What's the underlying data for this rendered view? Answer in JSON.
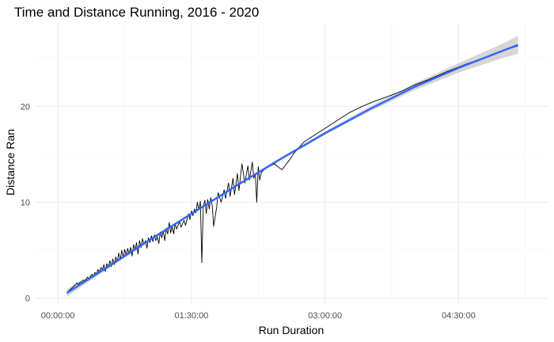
{
  "chart_data": {
    "type": "line",
    "title": "Time and Distance Running, 2016 - 2020",
    "xlabel": "Run Duration",
    "ylabel": "Distance Ran",
    "x_unit": "minutes",
    "xlim": [
      -15,
      330
    ],
    "ylim": [
      -0.6,
      28.6
    ],
    "x_ticks": [
      {
        "value": 0,
        "label": "00:00:00"
      },
      {
        "value": 90,
        "label": "01:30:00"
      },
      {
        "value": 180,
        "label": "03:00:00"
      },
      {
        "value": 270,
        "label": "04:30:00"
      }
    ],
    "y_ticks": [
      {
        "value": 0,
        "label": "0"
      },
      {
        "value": 10,
        "label": "10"
      },
      {
        "value": 20,
        "label": "20"
      }
    ],
    "grid": true,
    "legend": "none",
    "series": [
      {
        "kind": "observed",
        "color": "#000000",
        "points": [
          [
            6,
            0.6
          ],
          [
            9,
            1.0
          ],
          [
            11,
            1.3
          ],
          [
            13,
            1.6
          ],
          [
            14,
            1.4
          ],
          [
            15,
            1.7
          ],
          [
            16,
            1.6
          ],
          [
            17,
            1.9
          ],
          [
            18,
            1.8
          ],
          [
            19,
            2.0
          ],
          [
            20,
            2.2
          ],
          [
            21,
            2.0
          ],
          [
            22,
            2.3
          ],
          [
            23,
            2.5
          ],
          [
            24,
            2.2
          ],
          [
            25,
            2.7
          ],
          [
            26,
            2.5
          ],
          [
            27,
            3.0
          ],
          [
            28,
            2.7
          ],
          [
            29,
            3.2
          ],
          [
            30,
            3.0
          ],
          [
            31,
            3.5
          ],
          [
            32,
            2.8
          ],
          [
            33,
            3.6
          ],
          [
            34,
            3.2
          ],
          [
            35,
            3.9
          ],
          [
            36,
            3.3
          ],
          [
            37,
            4.1
          ],
          [
            38,
            3.5
          ],
          [
            39,
            4.3
          ],
          [
            40,
            3.8
          ],
          [
            41,
            4.7
          ],
          [
            42,
            4.0
          ],
          [
            43,
            5.0
          ],
          [
            44,
            4.2
          ],
          [
            45,
            5.1
          ],
          [
            46,
            4.5
          ],
          [
            47,
            5.2
          ],
          [
            48,
            4.6
          ],
          [
            49,
            5.3
          ],
          [
            50,
            4.4
          ],
          [
            51,
            5.6
          ],
          [
            52,
            5.0
          ],
          [
            53,
            5.8
          ],
          [
            54,
            4.6
          ],
          [
            55,
            6.0
          ],
          [
            56,
            5.3
          ],
          [
            57,
            6.2
          ],
          [
            58,
            5.6
          ],
          [
            59,
            6.0
          ],
          [
            60,
            5.2
          ],
          [
            61,
            6.3
          ],
          [
            62,
            5.8
          ],
          [
            63,
            6.5
          ],
          [
            64,
            5.9
          ],
          [
            65,
            6.6
          ],
          [
            66,
            6.0
          ],
          [
            67,
            6.4
          ],
          [
            68,
            5.7
          ],
          [
            69,
            6.9
          ],
          [
            70,
            6.3
          ],
          [
            71,
            7.0
          ],
          [
            72,
            6.0
          ],
          [
            73,
            7.3
          ],
          [
            74,
            6.7
          ],
          [
            75,
            7.9
          ],
          [
            76,
            6.8
          ],
          [
            77,
            7.5
          ],
          [
            78,
            6.7
          ],
          [
            79,
            7.8
          ],
          [
            80,
            7.2
          ],
          [
            82,
            8.0
          ],
          [
            83,
            7.4
          ],
          [
            85,
            8.1
          ],
          [
            86,
            7.6
          ],
          [
            88,
            8.8
          ],
          [
            89,
            8.2
          ],
          [
            90,
            9.1
          ],
          [
            91,
            8.6
          ],
          [
            92,
            9.3
          ],
          [
            93,
            8.9
          ],
          [
            94,
            10.0
          ],
          [
            95,
            9.2
          ],
          [
            96,
            10.1
          ],
          [
            97,
            3.7
          ],
          [
            98,
            9.6
          ],
          [
            99,
            10.2
          ],
          [
            100,
            8.8
          ],
          [
            101,
            10.3
          ],
          [
            102,
            9.3
          ],
          [
            103,
            10.5
          ],
          [
            104,
            9.6
          ],
          [
            105,
            7.5
          ],
          [
            107,
            9.5
          ],
          [
            108,
            11.0
          ],
          [
            110,
            10.0
          ],
          [
            112,
            11.3
          ],
          [
            113,
            10.4
          ],
          [
            115,
            12.0
          ],
          [
            116,
            10.6
          ],
          [
            118,
            12.5
          ],
          [
            119,
            10.8
          ],
          [
            121,
            13.0
          ],
          [
            122,
            11.2
          ],
          [
            124,
            14.0
          ],
          [
            126,
            12.0
          ],
          [
            128,
            13.8
          ],
          [
            129,
            12.3
          ],
          [
            131,
            14.2
          ],
          [
            132,
            12.5
          ],
          [
            133,
            13.0
          ],
          [
            134,
            10.0
          ],
          [
            135,
            13.7
          ],
          [
            136,
            12.3
          ],
          [
            137,
            13.1
          ],
          [
            139,
            13.4
          ],
          [
            142,
            13.7
          ],
          [
            146,
            14.0
          ],
          [
            149,
            13.6
          ],
          [
            151,
            13.4
          ],
          [
            153,
            13.8
          ],
          [
            156,
            14.4
          ],
          [
            159,
            15.1
          ],
          [
            163,
            15.8
          ],
          [
            166,
            16.3
          ],
          [
            172,
            16.9
          ],
          [
            180,
            17.7
          ],
          [
            188,
            18.5
          ],
          [
            196,
            19.3
          ],
          [
            205,
            20.0
          ],
          [
            213,
            20.5
          ],
          [
            222,
            21.0
          ],
          [
            232,
            21.6
          ],
          [
            240,
            22.2
          ],
          [
            250,
            22.8
          ],
          [
            262,
            23.6
          ],
          [
            275,
            24.4
          ],
          [
            288,
            25.1
          ],
          [
            300,
            25.8
          ],
          [
            310,
            26.3
          ]
        ]
      },
      {
        "kind": "smooth",
        "color": "#3366ff",
        "ribbon_color": "#999999",
        "points": [
          [
            6,
            0.55
          ],
          [
            30,
            2.9
          ],
          [
            60,
            5.9
          ],
          [
            90,
            8.8
          ],
          [
            120,
            11.7
          ],
          [
            150,
            14.5
          ],
          [
            180,
            17.2
          ],
          [
            210,
            19.7
          ],
          [
            240,
            22.0
          ],
          [
            270,
            24.0
          ],
          [
            300,
            25.8
          ],
          [
            310,
            26.4
          ]
        ],
        "se": [
          [
            6,
            0.4
          ],
          [
            30,
            0.2
          ],
          [
            60,
            0.15
          ],
          [
            90,
            0.12
          ],
          [
            120,
            0.12
          ],
          [
            150,
            0.15
          ],
          [
            180,
            0.18
          ],
          [
            210,
            0.25
          ],
          [
            240,
            0.35
          ],
          [
            270,
            0.5
          ],
          [
            300,
            0.75
          ],
          [
            310,
            0.95
          ]
        ]
      }
    ]
  }
}
